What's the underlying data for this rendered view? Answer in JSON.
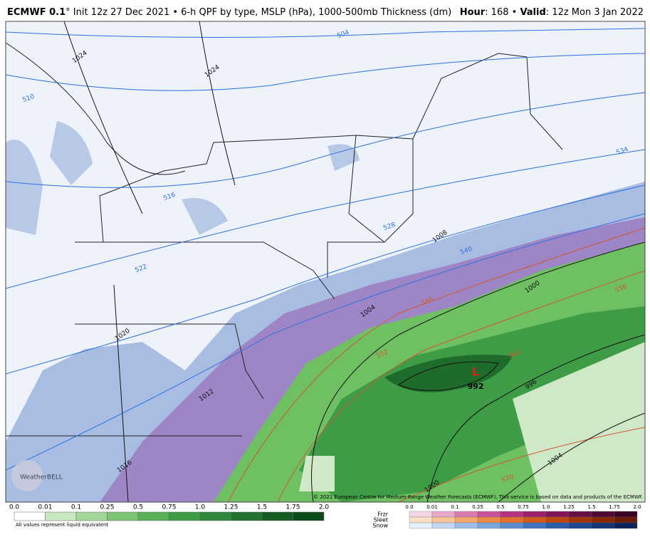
{
  "header": {
    "model": "ECMWF 0.1",
    "description": "° Init 12z 27 Dec 2021 • 6-h QPF by type, MSLP (hPa), 1000-500mb Thickness (dm)",
    "hour_key": "Hour",
    "hour_text": ": 168 • ",
    "valid_key": "Valid",
    "valid_text": ": 12z Mon 3 Jan 2022"
  },
  "map": {
    "thickness_labels": [
      "504",
      "510",
      "516",
      "522",
      "528",
      "534",
      "540",
      "546",
      "552",
      "558",
      "564",
      "570"
    ],
    "pressure_labels": [
      "1024",
      "1024",
      "1020",
      "1016",
      "1012",
      "1008",
      "1004",
      "1000",
      "1000",
      "996",
      "1004"
    ],
    "low": {
      "symbol": "L",
      "pressure": "992"
    },
    "copyright": "© 2021 European Centre for Medium-Range Weather Forecasts (ECMWF). This service is based on data and products of the ECMWF.",
    "logo": "WeatherBELL"
  },
  "legend": {
    "rain_ticks": [
      "0.0",
      "0.01",
      "0.1",
      "0.25",
      "0.5",
      "0.75",
      "1.0",
      "1.25",
      "1.5",
      "1.75",
      "2.0"
    ],
    "note": "All values represent liquid equivalent",
    "ptype_labels": [
      "Frzr",
      "Sleet",
      "Snow"
    ],
    "ptype_ticks": [
      "0.0",
      "0.01",
      "0.1",
      "0.25",
      "0.5",
      "0.75",
      "1.0",
      "1.25",
      "1.5",
      "1.75",
      "2.0"
    ]
  }
}
